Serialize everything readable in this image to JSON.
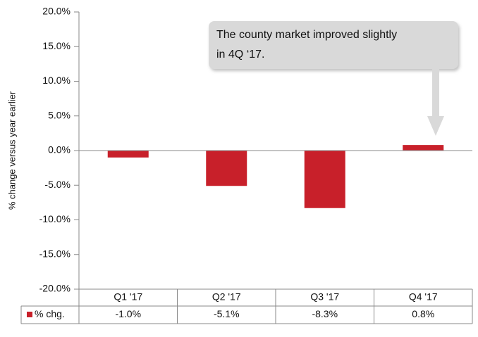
{
  "chart_data": {
    "type": "bar",
    "y_label": "% change versus year earlier",
    "annotation": [
      "The county market improved slightly",
      "in 4Q ‘17."
    ],
    "categories": [
      "Q1 '17",
      "Q2 '17",
      "Q3 '17",
      "Q4 '17"
    ],
    "series": [
      {
        "name": "% chg.",
        "color": "#c8202a",
        "values": [
          -1.0,
          -5.1,
          -8.3,
          0.8
        ],
        "value_labels": [
          "-1.0%",
          "-5.1%",
          "-8.3%",
          "0.8%"
        ]
      }
    ],
    "ylim": [
      -20,
      20
    ],
    "yticks": [
      {
        "value": -20,
        "label": "-20.0%"
      },
      {
        "value": -15,
        "label": "-15.0%"
      },
      {
        "value": -10,
        "label": "-10.0%"
      },
      {
        "value": -5,
        "label": "-5.0%"
      },
      {
        "value": 0,
        "label": "0.0%"
      },
      {
        "value": 5,
        "label": "5.0%"
      },
      {
        "value": 10,
        "label": "10.0%"
      },
      {
        "value": 15,
        "label": "15.0%"
      },
      {
        "value": 20,
        "label": "20.0%"
      }
    ]
  }
}
